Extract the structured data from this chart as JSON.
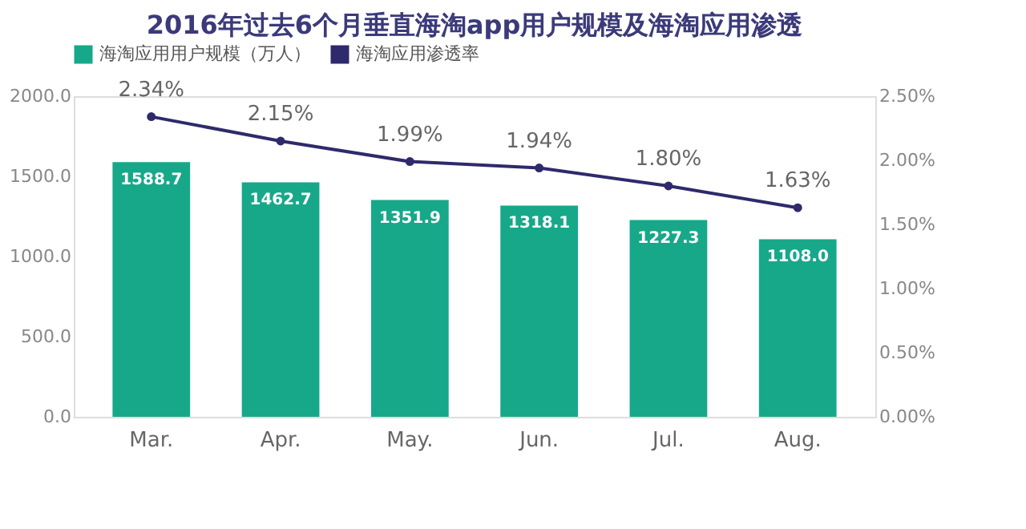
{
  "chart_data": {
    "type": "bar",
    "title": "2016年过去6个月垂直海淘app用户规模及海淘应用渗透",
    "categories": [
      "Mar.",
      "Apr.",
      "May.",
      "Jun.",
      "Jul.",
      "Aug."
    ],
    "series": [
      {
        "name": "海淘应用用户规模（万人）",
        "color": "#17a88a",
        "values": [
          1588.7,
          1462.7,
          1351.9,
          1318.1,
          1227.3,
          1108.0
        ],
        "value_labels": [
          "1588.7",
          "1462.7",
          "1351.9",
          "1318.1",
          "1227.3",
          "1108.0"
        ]
      },
      {
        "name": "海淘应用渗透率",
        "type": "line",
        "axis": "y2",
        "color": "#2e2a6b",
        "marker": "circle",
        "line_style": "solid",
        "values": [
          2.34,
          2.15,
          1.99,
          1.94,
          1.8,
          1.63
        ],
        "value_labels": [
          "2.34%",
          "2.15%",
          "1.99%",
          "1.94%",
          "1.80%",
          "1.63%"
        ]
      }
    ],
    "ylim": [
      0,
      2000
    ],
    "yticks": [
      {
        "value": 0,
        "label": "0.0"
      },
      {
        "value": 500,
        "label": "500.0"
      },
      {
        "value": 1000,
        "label": "1000.0"
      },
      {
        "value": 1500,
        "label": "1500.0"
      },
      {
        "value": 2000,
        "label": "2000.0"
      }
    ],
    "y2lim": [
      0,
      2.5
    ],
    "y2ticks": [
      {
        "value": 0,
        "label": "0.00%"
      },
      {
        "value": 0.5,
        "label": "0.50%"
      },
      {
        "value": 1,
        "label": "1.00%"
      },
      {
        "value": 1.5,
        "label": "1.50%"
      },
      {
        "value": 2,
        "label": "2.00%"
      },
      {
        "value": 2.5,
        "label": "2.50%"
      }
    ],
    "legend": "top",
    "grid": false
  }
}
